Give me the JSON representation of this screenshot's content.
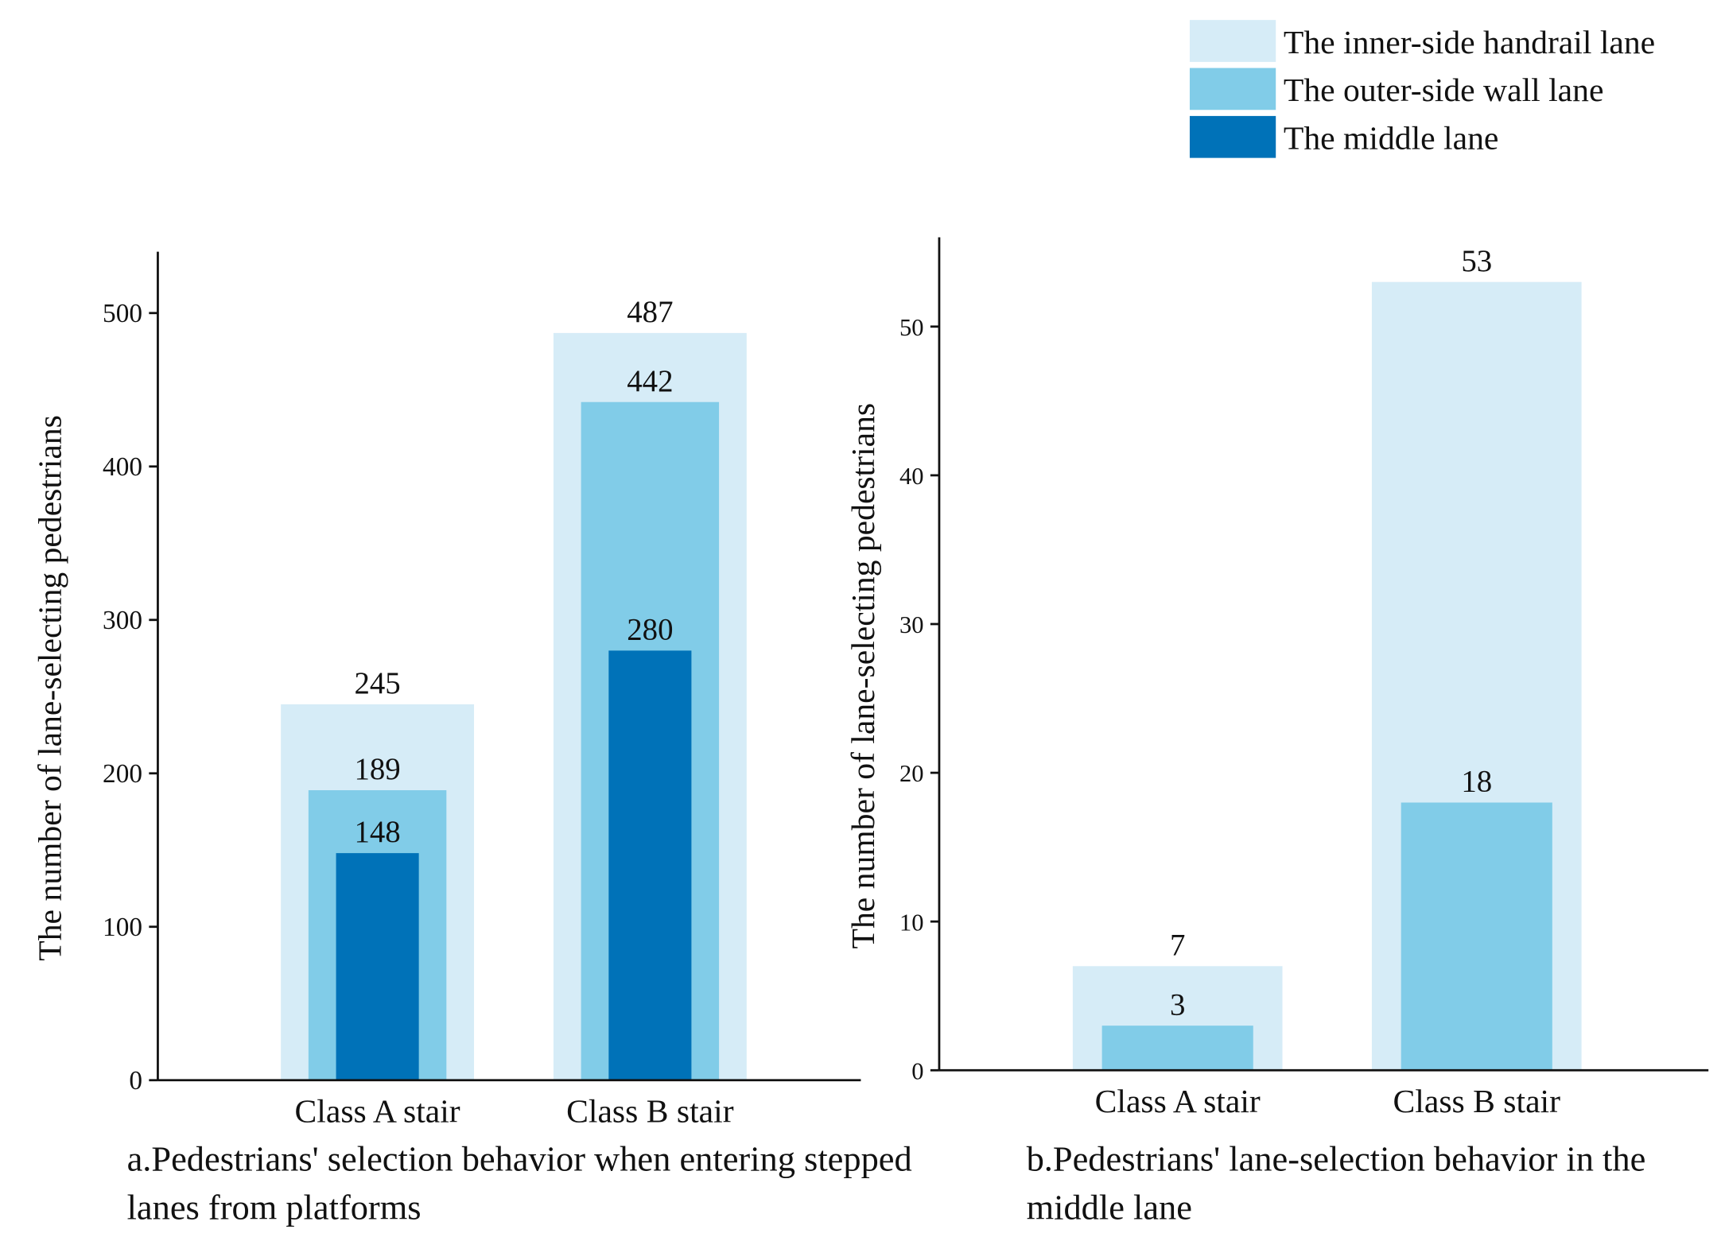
{
  "chart_data": [
    {
      "type": "bar",
      "caption": "a.Pedestrians' selection behavior when entering stepped lanes from platforms",
      "y_label": "The number of lane-selecting pedestrians",
      "categories": [
        "Class A stair",
        "Class B stair"
      ],
      "series": [
        {
          "name": "The inner-side handrail lane",
          "color": "#d6ecf7",
          "values": [
            245,
            487
          ]
        },
        {
          "name": "The outer-side wall lane",
          "color": "#81cce8",
          "values": [
            189,
            442
          ]
        },
        {
          "name": "The middle lane",
          "color": "#0072b8",
          "values": [
            148,
            280
          ]
        }
      ],
      "ylim": [
        0,
        540
      ],
      "yticks": [
        0,
        100,
        200,
        300,
        400,
        500
      ]
    },
    {
      "type": "bar",
      "caption": "b.Pedestrians' lane-selection behavior in the middle lane",
      "y_label": "The number of lane-selecting pedestrians",
      "categories": [
        "Class A stair",
        "Class B stair"
      ],
      "series": [
        {
          "color": "#d6ecf7",
          "values": [
            7,
            53
          ]
        },
        {
          "color": "#81cce8",
          "values": [
            3,
            18
          ]
        }
      ],
      "ylim": [
        0,
        56
      ],
      "yticks": [
        0,
        10,
        20,
        30,
        40,
        50
      ]
    }
  ]
}
